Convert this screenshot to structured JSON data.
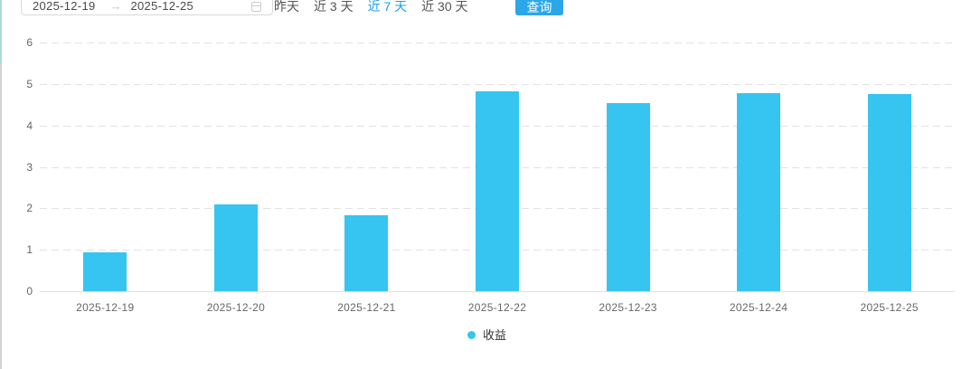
{
  "topbar": {
    "date_start": "2025-12-19",
    "date_end": "2025-12-25",
    "range_arrow": "→",
    "quick_links": [
      {
        "key": "yesterday",
        "label": "昨天",
        "active": false
      },
      {
        "key": "last-3-days",
        "label": "近 3 天",
        "active": false
      },
      {
        "key": "last-7-days",
        "label": "近 7 天",
        "active": true
      },
      {
        "key": "last-30-days",
        "label": "近 30 天",
        "active": false
      }
    ],
    "query_button_label": "查询",
    "calendar_icon": "calendar-icon"
  },
  "colors": {
    "bar": "#36c5f0",
    "button": "#2ba7e8",
    "active_link": "#1a9fe8",
    "grid": "#e2e2e2",
    "axis_label": "#666666",
    "legend_text": "#333333",
    "scroll_thumb": "#aed9da",
    "scroll_track": "#d6d2d2"
  },
  "chart_data": {
    "type": "bar",
    "categories": [
      "2025-12-19",
      "2025-12-20",
      "2025-12-21",
      "2025-12-22",
      "2025-12-23",
      "2025-12-24",
      "2025-12-25"
    ],
    "series": [
      {
        "name": "收益",
        "values": [
          0.95,
          2.1,
          1.83,
          4.82,
          4.55,
          4.78,
          4.76
        ]
      }
    ],
    "title": "",
    "xlabel": "",
    "ylabel": "",
    "ylim": [
      0,
      6
    ],
    "yticks": [
      0,
      1,
      2,
      3,
      4,
      5,
      6
    ],
    "grid": true,
    "grid_style": "dashed",
    "legend_position": "bottom",
    "legend": [
      "收益"
    ]
  }
}
